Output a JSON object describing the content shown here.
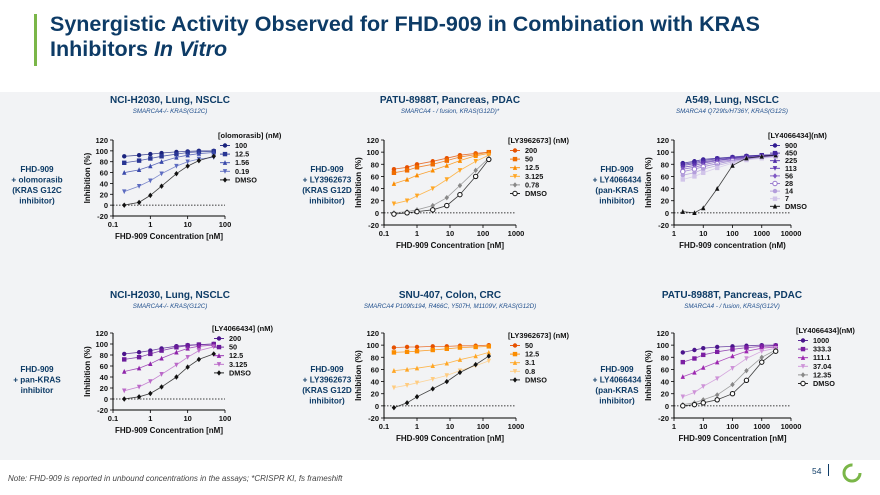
{
  "slide": {
    "title_line1": "Synergistic Activity Observed for FHD-909 in Combination with KRAS",
    "title_line2_a": "Inhibitors ",
    "title_line2_b": "In Vitro",
    "footnote_a": "Note",
    "footnote_b": ": FHD-909 is reported in unbound concentrations in the assays; *CRISPR KI, fs frameshift",
    "page_number": "54",
    "colors": {
      "title": "#0d3b66",
      "accent": "#7ab648",
      "panel_bg": "#f2f3f5"
    }
  },
  "chart_data": [
    {
      "type": "scatter",
      "title": "NCI-H2030, Lung, NSCLC",
      "subtitle": "SMARCA4-/- KRAS(G12C)",
      "side_label": [
        "FHD-909",
        "+ olomorasib",
        "(KRAS G12C",
        "inhibitor)"
      ],
      "xlabel": "FHD-909 Concentration [nM]",
      "ylabel": "Inhibition (%)",
      "legend_title": "[olomorasib] (nM)",
      "xscale": "log",
      "xlim": [
        0.1,
        100
      ],
      "ylim": [
        -20,
        120
      ],
      "xticks": [
        0.1,
        1,
        10,
        100
      ],
      "xtick_labels": [
        "0.1",
        "1",
        "10",
        "100"
      ],
      "yticks": [
        -20,
        0,
        20,
        40,
        60,
        80,
        100,
        120
      ],
      "x": [
        0.2,
        0.5,
        1,
        2,
        5,
        10,
        20,
        50
      ],
      "series": [
        {
          "name": "100",
          "color": "#1a237e",
          "values": [
            90,
            92,
            94,
            96,
            98,
            99,
            100,
            100
          ]
        },
        {
          "name": "12.5",
          "color": "#283593",
          "values": [
            78,
            82,
            86,
            90,
            94,
            97,
            98,
            99
          ]
        },
        {
          "name": "1.56",
          "color": "#3949ab",
          "values": [
            60,
            65,
            72,
            80,
            88,
            92,
            95,
            97
          ]
        },
        {
          "name": "0.19",
          "color": "#5c6bc0",
          "values": [
            25,
            35,
            45,
            58,
            72,
            80,
            85,
            88
          ]
        },
        {
          "name": "DMSO",
          "color": "#111111",
          "values": [
            0,
            5,
            18,
            35,
            58,
            72,
            82,
            90
          ]
        }
      ]
    },
    {
      "type": "scatter",
      "title": "PATU-8988T, Pancreas, PDAC",
      "subtitle": "SMARCA4 - / fusion, KRAS(G12D)*",
      "side_label": [
        "FHD-909",
        "+ LY3962673",
        "(KRAS G12D",
        "inhibitor)"
      ],
      "xlabel": "FHD-909 Concentration [nM]",
      "ylabel": "Inhibition (%)",
      "legend_title": "[LY3962673] (nM)",
      "xscale": "log",
      "xlim": [
        0.1,
        1000
      ],
      "ylim": [
        -20,
        120
      ],
      "xticks": [
        0.1,
        1,
        10,
        100,
        1000
      ],
      "xtick_labels": [
        "0.1",
        "1",
        "10",
        "100",
        "1000"
      ],
      "yticks": [
        -20,
        0,
        20,
        40,
        60,
        80,
        100,
        120
      ],
      "x": [
        0.2,
        0.5,
        1,
        3,
        8,
        20,
        60,
        150
      ],
      "series": [
        {
          "name": "200",
          "color": "#e65100",
          "values": [
            72,
            75,
            80,
            85,
            90,
            95,
            98,
            100
          ]
        },
        {
          "name": "50",
          "color": "#ef6c00",
          "values": [
            66,
            70,
            75,
            80,
            86,
            92,
            96,
            100
          ]
        },
        {
          "name": "12.5",
          "color": "#fb8c00",
          "values": [
            48,
            55,
            62,
            70,
            78,
            86,
            94,
            98
          ]
        },
        {
          "name": "3.125",
          "color": "#ffa726",
          "values": [
            15,
            20,
            28,
            40,
            55,
            70,
            85,
            95
          ]
        },
        {
          "name": "0.78",
          "color": "#888888",
          "values": [
            0,
            2,
            5,
            12,
            25,
            45,
            70,
            90
          ]
        },
        {
          "name": "DMSO",
          "color": "#111111",
          "values": [
            -2,
            0,
            2,
            5,
            12,
            30,
            60,
            88
          ]
        }
      ]
    },
    {
      "type": "scatter",
      "title": "A549, Lung, NSCLC",
      "subtitle": "SMARCA4 Q729fs/H736Y, KRAS(G12S)",
      "side_label": [
        "FHD-909",
        "+ LY4066434",
        "(pan-KRAS",
        "inhibitor)"
      ],
      "xlabel": "FHD-909 concentration (nM)",
      "ylabel": "Inhibition (%)",
      "legend_title": "[LY4066434](nM)",
      "xscale": "log",
      "xlim": [
        1,
        10000
      ],
      "ylim": [
        -20,
        120
      ],
      "xticks": [
        1,
        10,
        100,
        1000,
        10000
      ],
      "xtick_labels": [
        "1",
        "10",
        "100",
        "1000",
        "10000"
      ],
      "yticks": [
        -20,
        0,
        20,
        40,
        60,
        80,
        100,
        120
      ],
      "x": [
        2,
        5,
        10,
        30,
        100,
        300,
        1000,
        3000
      ],
      "series": [
        {
          "name": "900",
          "color": "#311b92",
          "values": [
            82,
            85,
            88,
            90,
            92,
            94,
            95,
            96
          ]
        },
        {
          "name": "450",
          "color": "#4527a0",
          "values": [
            80,
            83,
            86,
            89,
            91,
            93,
            95,
            96
          ]
        },
        {
          "name": "225",
          "color": "#512da8",
          "values": [
            78,
            81,
            84,
            87,
            90,
            92,
            94,
            95
          ]
        },
        {
          "name": "113",
          "color": "#5e35b1",
          "values": [
            75,
            78,
            82,
            86,
            89,
            91,
            93,
            95
          ]
        },
        {
          "name": "56",
          "color": "#7e57c2",
          "values": [
            72,
            75,
            79,
            84,
            87,
            90,
            92,
            94
          ]
        },
        {
          "name": "28",
          "color": "#9575cd",
          "values": [
            68,
            72,
            76,
            81,
            86,
            89,
            92,
            94
          ]
        },
        {
          "name": "14",
          "color": "#b39ddb",
          "values": [
            62,
            66,
            72,
            78,
            84,
            88,
            91,
            93
          ]
        },
        {
          "name": "7",
          "color": "#d1c4e9",
          "values": [
            55,
            60,
            66,
            74,
            82,
            87,
            90,
            92
          ]
        },
        {
          "name": "DMSO",
          "color": "#111111",
          "values": [
            2,
            0,
            8,
            40,
            78,
            90,
            93,
            95
          ]
        }
      ]
    },
    {
      "type": "scatter",
      "title": "NCI-H2030, Lung, NSCLC",
      "subtitle": "SMARCA4-/- KRAS(G12C)",
      "side_label": [
        "FHD-909",
        "+ pan-KRAS",
        "inhibitor"
      ],
      "xlabel": "FHD-909 Concentration [nM]",
      "ylabel": "Inhibition (%)",
      "legend_title": "[LY4066434] (nM)",
      "xscale": "log",
      "xlim": [
        0.1,
        100
      ],
      "ylim": [
        -20,
        120
      ],
      "xticks": [
        0.1,
        1,
        10,
        100
      ],
      "xtick_labels": [
        "0.1",
        "1",
        "10",
        "100"
      ],
      "yticks": [
        -20,
        0,
        20,
        40,
        60,
        80,
        100,
        120
      ],
      "x": [
        0.2,
        0.5,
        1,
        2,
        5,
        10,
        20,
        50
      ],
      "series": [
        {
          "name": "200",
          "color": "#4a148c",
          "values": [
            82,
            85,
            88,
            92,
            96,
            98,
            99,
            100
          ]
        },
        {
          "name": "50",
          "color": "#6a1b9a",
          "values": [
            72,
            76,
            82,
            88,
            94,
            97,
            99,
            100
          ]
        },
        {
          "name": "12.5",
          "color": "#8e24aa",
          "values": [
            50,
            56,
            64,
            74,
            85,
            92,
            96,
            98
          ]
        },
        {
          "name": "3.125",
          "color": "#ba68c8",
          "values": [
            15,
            22,
            32,
            45,
            62,
            76,
            88,
            95
          ]
        },
        {
          "name": "DMSO",
          "color": "#111111",
          "values": [
            0,
            4,
            10,
            22,
            40,
            58,
            72,
            82
          ]
        }
      ]
    },
    {
      "type": "scatter",
      "title": "SNU-407, Colon, CRC",
      "subtitle": "SMARCA4 P109fs194, R466C, Y507H, M1109V, KRAS(G12D)",
      "side_label": [
        "FHD-909",
        "+ LY3962673",
        "(KRAS G12D",
        "inhibitor)"
      ],
      "xlabel": "FHD-909 Concentration [nM]",
      "ylabel": "Inhibition (%)",
      "legend_title": "[LY3962673] (nM)",
      "xscale": "log",
      "xlim": [
        0.1,
        1000
      ],
      "ylim": [
        -20,
        120
      ],
      "xticks": [
        0.1,
        1,
        10,
        100,
        1000
      ],
      "xtick_labels": [
        "0.1",
        "1",
        "10",
        "100",
        "1000"
      ],
      "yticks": [
        -20,
        0,
        20,
        40,
        60,
        80,
        100,
        120
      ],
      "x": [
        0.2,
        0.5,
        1,
        3,
        8,
        20,
        60,
        150
      ],
      "series": [
        {
          "name": "50",
          "color": "#e65100",
          "values": [
            96,
            97,
            97,
            98,
            98,
            99,
            99,
            100
          ]
        },
        {
          "name": "12.5",
          "color": "#fb8c00",
          "values": [
            88,
            89,
            90,
            92,
            94,
            96,
            97,
            98
          ]
        },
        {
          "name": "3.1",
          "color": "#ffa726",
          "values": [
            58,
            60,
            62,
            66,
            70,
            76,
            82,
            88
          ]
        },
        {
          "name": "0.8",
          "color": "#ffcc80",
          "values": [
            30,
            34,
            38,
            44,
            50,
            58,
            66,
            74
          ]
        },
        {
          "name": "DMSO",
          "color": "#111111",
          "values": [
            -3,
            5,
            15,
            28,
            40,
            55,
            68,
            82
          ]
        }
      ]
    },
    {
      "type": "scatter",
      "title": "PATU-8988T, Pancreas, PDAC",
      "subtitle": "SMARCA4 - / fusion, KRAS(G12V)",
      "side_label": [
        "FHD-909",
        "+ LY4066434",
        "(pan-KRAS",
        "inhibitor)"
      ],
      "xlabel": "FHD-909 Concentration [nM]",
      "ylabel": "Inhibition (%)",
      "legend_title": "[LY4066434](nM)",
      "xscale": "log",
      "xlim": [
        1,
        10000
      ],
      "ylim": [
        -20,
        120
      ],
      "xticks": [
        1,
        10,
        100,
        1000,
        10000
      ],
      "xtick_labels": [
        "1",
        "10",
        "100",
        "1000",
        "10000"
      ],
      "yticks": [
        -20,
        0,
        20,
        40,
        60,
        80,
        100,
        120
      ],
      "x": [
        2,
        5,
        10,
        30,
        100,
        300,
        1000,
        3000
      ],
      "series": [
        {
          "name": "1000",
          "color": "#4a148c",
          "values": [
            88,
            92,
            95,
            97,
            98,
            99,
            100,
            100
          ]
        },
        {
          "name": "333.3",
          "color": "#7b1fa2",
          "values": [
            72,
            78,
            84,
            89,
            93,
            96,
            98,
            99
          ]
        },
        {
          "name": "111.1",
          "color": "#9c27b0",
          "values": [
            48,
            55,
            63,
            72,
            82,
            90,
            95,
            97
          ]
        },
        {
          "name": "37.04",
          "color": "#ce93d8",
          "values": [
            15,
            22,
            32,
            45,
            62,
            78,
            90,
            95
          ]
        },
        {
          "name": "12.35",
          "color": "#888888",
          "values": [
            2,
            5,
            10,
            18,
            35,
            58,
            80,
            92
          ]
        },
        {
          "name": "DMSO",
          "color": "#111111",
          "values": [
            0,
            2,
            5,
            10,
            20,
            42,
            72,
            90
          ]
        }
      ]
    }
  ]
}
